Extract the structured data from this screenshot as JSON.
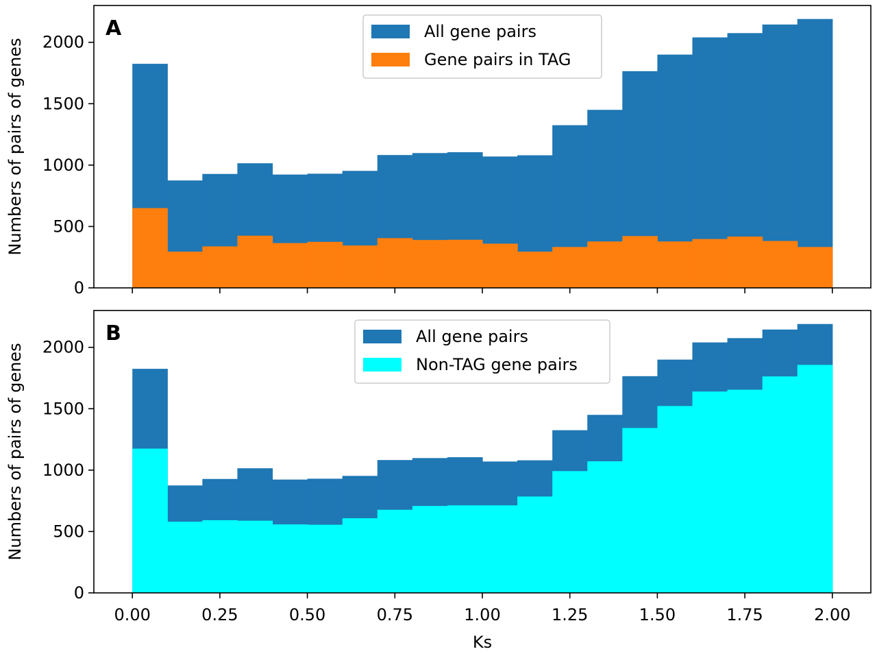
{
  "chart_data": [
    {
      "type": "bar",
      "panel_label": "A",
      "xlabel": "",
      "ylabel": "Numbers of pairs of genes",
      "bin_edges": [
        0.0,
        0.1,
        0.2,
        0.3,
        0.4,
        0.5,
        0.6,
        0.7,
        0.8,
        0.9,
        1.0,
        1.1,
        1.2,
        1.3,
        1.4,
        1.5,
        1.6,
        1.7,
        1.8,
        1.9,
        2.0
      ],
      "xlim": [
        -0.11,
        2.11
      ],
      "ylim": [
        0,
        2300
      ],
      "yticks": [
        0,
        500,
        1000,
        1500,
        2000
      ],
      "ytick_labels": [
        "0",
        "500",
        "1000",
        "1500",
        "2000"
      ],
      "xticks": [
        0.0,
        0.25,
        0.5,
        0.75,
        1.0,
        1.25,
        1.5,
        1.75,
        2.0
      ],
      "xtick_labels": [],
      "legend_position": "upper center",
      "series": [
        {
          "name": "All gene pairs",
          "color": "#1f77b4",
          "values": [
            1825,
            875,
            928,
            1015,
            923,
            930,
            953,
            1082,
            1098,
            1105,
            1070,
            1080,
            1325,
            1450,
            1765,
            1900,
            2040,
            2075,
            2145,
            2190
          ]
        },
        {
          "name": "Gene pairs in TAG",
          "color": "#ff7f0e",
          "values": [
            650,
            295,
            338,
            425,
            365,
            375,
            345,
            405,
            390,
            392,
            360,
            295,
            333,
            378,
            422,
            378,
            398,
            418,
            382,
            333
          ]
        }
      ]
    },
    {
      "type": "bar",
      "panel_label": "B",
      "xlabel": "Ks",
      "ylabel": "Numbers of pairs of genes",
      "bin_edges": [
        0.0,
        0.1,
        0.2,
        0.3,
        0.4,
        0.5,
        0.6,
        0.7,
        0.8,
        0.9,
        1.0,
        1.1,
        1.2,
        1.3,
        1.4,
        1.5,
        1.6,
        1.7,
        1.8,
        1.9,
        2.0
      ],
      "xlim": [
        -0.11,
        2.11
      ],
      "ylim": [
        0,
        2300
      ],
      "yticks": [
        0,
        500,
        1000,
        1500,
        2000
      ],
      "ytick_labels": [
        "0",
        "500",
        "1000",
        "1500",
        "2000"
      ],
      "xticks": [
        0.0,
        0.25,
        0.5,
        0.75,
        1.0,
        1.25,
        1.5,
        1.75,
        2.0
      ],
      "xtick_labels": [
        "0.00",
        "0.25",
        "0.50",
        "0.75",
        "1.00",
        "1.25",
        "1.50",
        "1.75",
        "2.00"
      ],
      "legend_position": "upper center",
      "series": [
        {
          "name": "All gene pairs",
          "color": "#1f77b4",
          "values": [
            1825,
            875,
            928,
            1015,
            923,
            930,
            953,
            1082,
            1098,
            1105,
            1070,
            1080,
            1325,
            1450,
            1765,
            1900,
            2040,
            2075,
            2145,
            2190
          ]
        },
        {
          "name": "Non-TAG gene pairs",
          "color": "#00ffff",
          "values": [
            1175,
            580,
            592,
            588,
            558,
            555,
            608,
            677,
            708,
            713,
            713,
            785,
            992,
            1072,
            1343,
            1522,
            1640,
            1655,
            1763,
            1857
          ]
        }
      ]
    }
  ]
}
